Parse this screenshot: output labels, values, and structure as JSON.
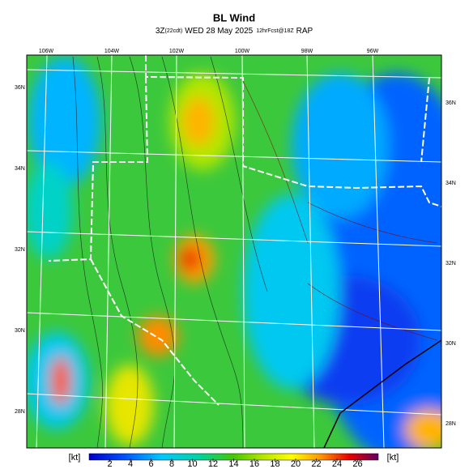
{
  "header": {
    "title": "BL Wind",
    "subtitle": {
      "valid": "3Z",
      "local": "(22cdt)",
      "date": "WED 28 May 2025",
      "forecast": "12hrFcst@18Z",
      "model": "RAP"
    }
  },
  "map": {
    "lon_labels": [
      "106W",
      "104W",
      "102W",
      "100W",
      "98W",
      "96W"
    ],
    "lat_labels_left": [
      "36N",
      "34N",
      "32N",
      "30N",
      "28N"
    ],
    "lat_labels_right": [
      "36N",
      "34N",
      "32N",
      "30N",
      "28N"
    ]
  },
  "colorbar": {
    "unit_left": "[kt]",
    "unit_right": "[kt]",
    "range": [
      0,
      28
    ],
    "ticks": [
      2,
      4,
      6,
      8,
      10,
      12,
      14,
      16,
      18,
      20,
      22,
      24,
      26
    ]
  }
}
